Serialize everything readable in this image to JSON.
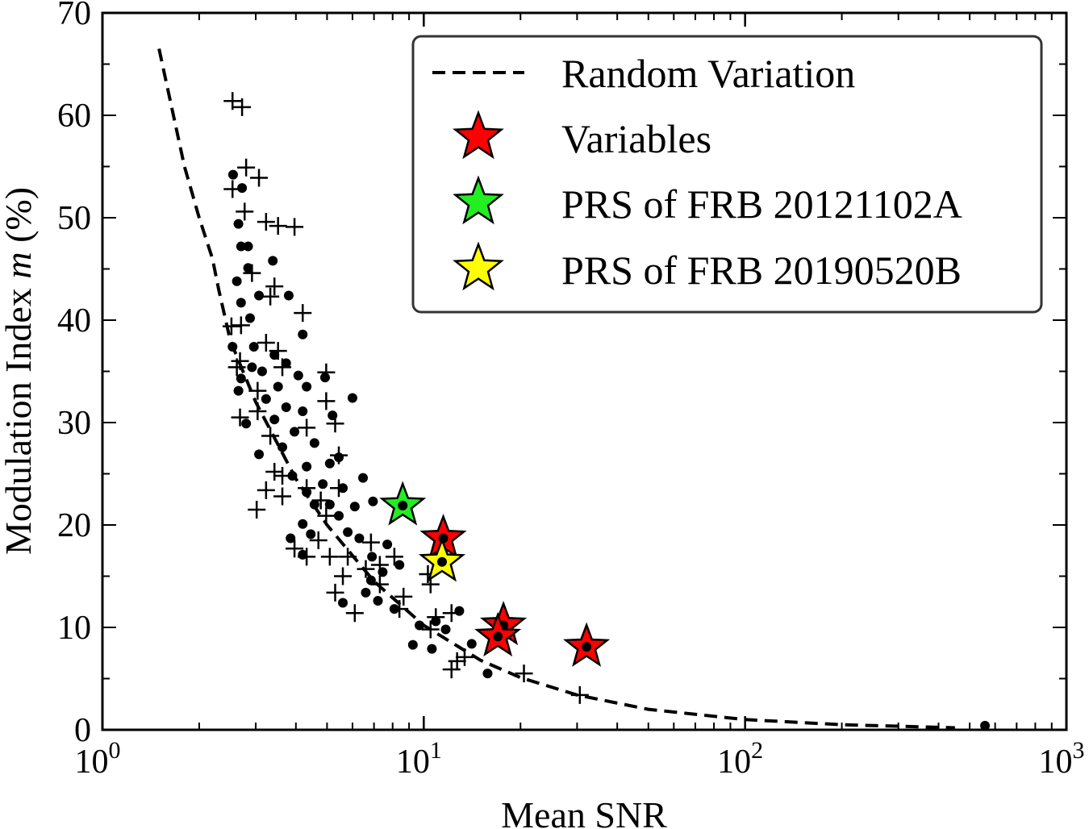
{
  "chart_data": {
    "type": "scatter",
    "title": "",
    "xlabel": "Mean SNR",
    "ylabel": {
      "prefix": "Modulation Index ",
      "var": "m",
      "suffix": " (%)"
    },
    "xscale": "log",
    "xlim": [
      1,
      1000
    ],
    "ylim": [
      0,
      70
    ],
    "xticks": [
      {
        "base": "10",
        "exp": "0",
        "value": 1
      },
      {
        "base": "10",
        "exp": "1",
        "value": 10
      },
      {
        "base": "10",
        "exp": "2",
        "value": 100
      },
      {
        "base": "10",
        "exp": "3",
        "value": 1000
      }
    ],
    "yticks": [
      0,
      10,
      20,
      30,
      40,
      50,
      60,
      70
    ],
    "grid": false,
    "legend_position": "top-right",
    "legend": [
      "Random Variation",
      "Variables",
      "PRS of FRB 20121102A",
      "PRS of FRB 20190520B"
    ],
    "colors": {
      "variables": "#ff0000",
      "frb20121102a": "#22ee22",
      "frb20190520b": "#ffff00",
      "points": "#000000"
    },
    "random_variation_curve": {
      "style": "dashed",
      "x": [
        1.5,
        1.8,
        2.0,
        2.2,
        2.3,
        2.5,
        3,
        4,
        5,
        7,
        10,
        15,
        20,
        30,
        50,
        100,
        200,
        450
      ],
      "y": [
        66.5,
        55,
        50,
        46,
        43,
        38,
        32,
        24.5,
        20,
        14.5,
        10.2,
        6.8,
        5.1,
        3.4,
        2.0,
        1.0,
        0.5,
        0.2
      ]
    },
    "series_dots": [
      [
        2.55,
        54.2
      ],
      [
        2.72,
        52.9
      ],
      [
        2.65,
        49.4
      ],
      [
        2.7,
        47.2
      ],
      [
        2.84,
        47.2
      ],
      [
        2.84,
        45.1
      ],
      [
        2.62,
        43.8
      ],
      [
        3.39,
        45.8
      ],
      [
        3.07,
        42.4
      ],
      [
        3.8,
        42.4
      ],
      [
        2.7,
        41.7
      ],
      [
        4.2,
        38.6
      ],
      [
        2.88,
        40.2
      ],
      [
        2.54,
        37.4
      ],
      [
        2.96,
        37.4
      ],
      [
        3.43,
        36.6
      ],
      [
        3.73,
        35.8
      ],
      [
        2.92,
        35.4
      ],
      [
        3.14,
        35.0
      ],
      [
        4.07,
        34.6
      ],
      [
        4.93,
        34.4
      ],
      [
        3.52,
        33.5
      ],
      [
        4.32,
        33.5
      ],
      [
        6.0,
        32.4
      ],
      [
        2.7,
        34.3
      ],
      [
        2.65,
        33.1
      ],
      [
        3.23,
        32.3
      ],
      [
        3.73,
        31.5
      ],
      [
        4.2,
        31.1
      ],
      [
        5.2,
        30.7
      ],
      [
        2.8,
        29.9
      ],
      [
        3.43,
        30.3
      ],
      [
        3.96,
        29.1
      ],
      [
        3.07,
        26.9
      ],
      [
        3.63,
        27.6
      ],
      [
        4.57,
        28.0
      ],
      [
        5.44,
        26.6
      ],
      [
        4.32,
        25.7
      ],
      [
        5.1,
        26.0
      ],
      [
        6.47,
        24.6
      ],
      [
        3.9,
        24.8
      ],
      [
        4.85,
        24.0
      ],
      [
        4.32,
        23.2
      ],
      [
        5.6,
        23.6
      ],
      [
        4.57,
        22.0
      ],
      [
        5.1,
        22.0
      ],
      [
        6.95,
        22.3
      ],
      [
        6.1,
        21.8
      ],
      [
        4.2,
        20.1
      ],
      [
        5.44,
        20.9
      ],
      [
        5.8,
        19.3
      ],
      [
        3.85,
        18.7
      ],
      [
        4.45,
        19.1
      ],
      [
        6.3,
        18.7
      ],
      [
        7.7,
        18.1
      ],
      [
        4.2,
        17.1
      ],
      [
        8.4,
        16.1
      ],
      [
        6.9,
        16.9
      ],
      [
        7.45,
        15.4
      ],
      [
        6.85,
        14.6
      ],
      [
        6.6,
        13.4
      ],
      [
        7.2,
        12.6
      ],
      [
        5.6,
        12.4
      ],
      [
        8.1,
        11.8
      ],
      [
        12.9,
        11.6
      ],
      [
        10.9,
        10.6
      ],
      [
        9.7,
        10.2
      ],
      [
        11.7,
        9.8
      ],
      [
        14.1,
        8.4
      ],
      [
        9.25,
        8.3
      ],
      [
        10.6,
        7.9
      ],
      [
        15.8,
        5.5
      ],
      [
        558,
        0.4
      ]
    ],
    "series_crosses": [
      [
        2.54,
        61.4
      ],
      [
        2.72,
        60.8
      ],
      [
        2.8,
        54.9
      ],
      [
        3.07,
        53.9
      ],
      [
        2.54,
        52.8
      ],
      [
        2.77,
        50.6
      ],
      [
        3.23,
        49.6
      ],
      [
        3.52,
        49.2
      ],
      [
        3.96,
        49.1
      ],
      [
        2.92,
        44.6
      ],
      [
        3.43,
        43.3
      ],
      [
        3.33,
        42.3
      ],
      [
        4.2,
        40.7
      ],
      [
        2.52,
        39.4
      ],
      [
        2.7,
        39.5
      ],
      [
        3.23,
        37.8
      ],
      [
        3.52,
        37.0
      ],
      [
        2.68,
        36.0
      ],
      [
        2.62,
        35.4
      ],
      [
        3.63,
        35.4
      ],
      [
        4.97,
        34.9
      ],
      [
        3.04,
        33.1
      ],
      [
        4.97,
        32.1
      ],
      [
        2.68,
        30.5
      ],
      [
        3.04,
        31.1
      ],
      [
        5.3,
        29.9
      ],
      [
        3.33,
        28.7
      ],
      [
        4.32,
        29.5
      ],
      [
        3.43,
        25.2
      ],
      [
        3.63,
        24.8
      ],
      [
        3.23,
        23.4
      ],
      [
        4.32,
        23.6
      ],
      [
        4.78,
        22.4
      ],
      [
        3.02,
        21.5
      ],
      [
        3.63,
        22.8
      ],
      [
        5.44,
        26.8
      ],
      [
        5.44,
        23.6
      ],
      [
        4.97,
        20.9
      ],
      [
        3.96,
        17.7
      ],
      [
        4.32,
        16.9
      ],
      [
        5.1,
        16.9
      ],
      [
        4.7,
        18.5
      ],
      [
        5.8,
        16.9
      ],
      [
        5.6,
        15.0
      ],
      [
        5.3,
        13.4
      ],
      [
        6.1,
        11.4
      ],
      [
        6.85,
        18.3
      ],
      [
        8.1,
        16.9
      ],
      [
        7.3,
        16.1
      ],
      [
        7.3,
        14.2
      ],
      [
        6.6,
        15.7
      ],
      [
        8.65,
        13.0
      ],
      [
        8.4,
        11.8
      ],
      [
        10.3,
        15.2
      ],
      [
        10.5,
        14.2
      ],
      [
        12.2,
        11.4
      ],
      [
        10.9,
        11.0
      ],
      [
        10.5,
        9.8
      ],
      [
        12.7,
        6.7
      ],
      [
        12.2,
        5.9
      ],
      [
        13.4,
        7.1
      ],
      [
        20.5,
        5.5
      ],
      [
        30.6,
        3.4
      ]
    ],
    "variables": [
      [
        11.5,
        18.7
      ],
      [
        17.7,
        10.2
      ],
      [
        17.0,
        9.1
      ],
      [
        32.1,
        8.1
      ]
    ],
    "frb20121102a": [
      [
        8.6,
        21.9
      ]
    ],
    "frb20190520b": [
      [
        11.4,
        16.4
      ]
    ]
  }
}
